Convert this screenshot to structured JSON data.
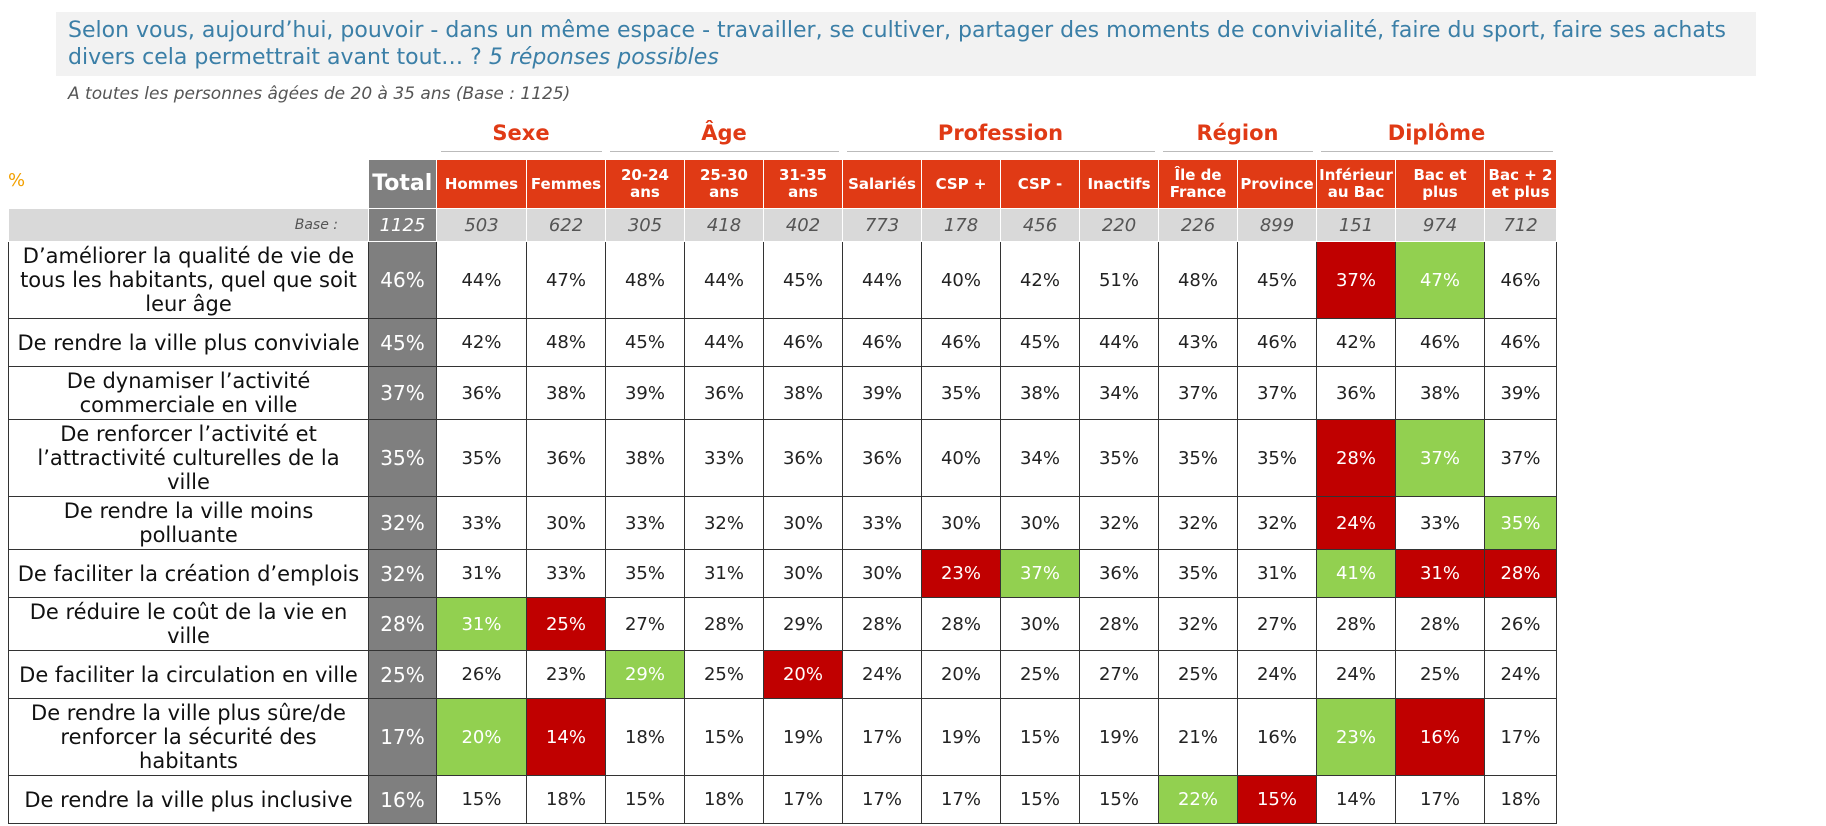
{
  "question": "Selon vous, aujourd’hui, pouvoir - dans un même espace - travailler, se cultiver, partager des moments de convivialité, faire du sport, faire ses achats divers cela permettrait avant tout… ?",
  "question_note": "5 réponses possibles",
  "base_description": "A toutes les personnes âgées de 20 à 35 ans (Base : 1125)",
  "percent_sign": "%",
  "colors": {
    "header": "#e03a15",
    "total": "#7f7f7f",
    "high": "#92d050",
    "low": "#c00000",
    "question_text": "#3b7fa7"
  },
  "chart_data": {
    "type": "table",
    "groups": [
      {
        "name": "Sexe",
        "span": 2
      },
      {
        "name": "Âge",
        "span": 3
      },
      {
        "name": "Profession",
        "span": 4
      },
      {
        "name": "Région",
        "span": 2
      },
      {
        "name": "Diplôme",
        "span": 3
      }
    ],
    "total_label": "Total",
    "columns": [
      "Hommes",
      "Femmes",
      "20-24 ans",
      "25-30 ans",
      "31-35 ans",
      "Salariés",
      "CSP +",
      "CSP -",
      "Inactifs",
      "Île de France",
      "Province",
      "Inférieur au Bac",
      "Bac et plus",
      "Bac + 2 et plus"
    ],
    "base_label": "Base :",
    "base": {
      "total": "1125",
      "values": [
        "503",
        "622",
        "305",
        "418",
        "402",
        "773",
        "178",
        "456",
        "220",
        "226",
        "899",
        "151",
        "974",
        "712"
      ]
    },
    "rows": [
      {
        "label": "D’améliorer la qualité de vie de tous les habitants, quel que soit leur âge",
        "total": "46%",
        "values": [
          "44%",
          "47%",
          "48%",
          "44%",
          "45%",
          "44%",
          "40%",
          "42%",
          "51%",
          "48%",
          "45%",
          "37%",
          "47%",
          "46%"
        ],
        "flags": [
          "",
          "",
          "",
          "",
          "",
          "",
          "",
          "",
          "",
          "",
          "",
          "low",
          "high",
          ""
        ]
      },
      {
        "label": "De rendre la ville plus conviviale",
        "total": "45%",
        "values": [
          "42%",
          "48%",
          "45%",
          "44%",
          "46%",
          "46%",
          "46%",
          "45%",
          "44%",
          "43%",
          "46%",
          "42%",
          "46%",
          "46%"
        ],
        "flags": [
          "",
          "",
          "",
          "",
          "",
          "",
          "",
          "",
          "",
          "",
          "",
          "",
          "",
          ""
        ]
      },
      {
        "label": "De dynamiser l’activité commerciale en ville",
        "total": "37%",
        "values": [
          "36%",
          "38%",
          "39%",
          "36%",
          "38%",
          "39%",
          "35%",
          "38%",
          "34%",
          "37%",
          "37%",
          "36%",
          "38%",
          "39%"
        ],
        "flags": [
          "",
          "",
          "",
          "",
          "",
          "",
          "",
          "",
          "",
          "",
          "",
          "",
          "",
          ""
        ]
      },
      {
        "label": "De renforcer l’activité et l’attractivité culturelles de la ville",
        "total": "35%",
        "values": [
          "35%",
          "36%",
          "38%",
          "33%",
          "36%",
          "36%",
          "40%",
          "34%",
          "35%",
          "35%",
          "35%",
          "28%",
          "37%",
          "37%"
        ],
        "flags": [
          "",
          "",
          "",
          "",
          "",
          "",
          "",
          "",
          "",
          "",
          "",
          "low",
          "high",
          ""
        ]
      },
      {
        "label": "De rendre la ville moins polluante",
        "total": "32%",
        "values": [
          "33%",
          "30%",
          "33%",
          "32%",
          "30%",
          "33%",
          "30%",
          "30%",
          "32%",
          "32%",
          "32%",
          "24%",
          "33%",
          "35%"
        ],
        "flags": [
          "",
          "",
          "",
          "",
          "",
          "",
          "",
          "",
          "",
          "",
          "",
          "low",
          "",
          "high"
        ]
      },
      {
        "label": "De faciliter la création d’emplois",
        "total": "32%",
        "values": [
          "31%",
          "33%",
          "35%",
          "31%",
          "30%",
          "30%",
          "23%",
          "37%",
          "36%",
          "35%",
          "31%",
          "41%",
          "31%",
          "28%"
        ],
        "flags": [
          "",
          "",
          "",
          "",
          "",
          "",
          "low",
          "high",
          "",
          "",
          "",
          "high",
          "low",
          "low"
        ]
      },
      {
        "label": "De réduire le coût de la vie en ville",
        "total": "28%",
        "values": [
          "31%",
          "25%",
          "27%",
          "28%",
          "29%",
          "28%",
          "28%",
          "30%",
          "28%",
          "32%",
          "27%",
          "28%",
          "28%",
          "26%"
        ],
        "flags": [
          "high",
          "low",
          "",
          "",
          "",
          "",
          "",
          "",
          "",
          "",
          "",
          "",
          "",
          ""
        ]
      },
      {
        "label": "De faciliter la circulation en ville",
        "total": "25%",
        "values": [
          "26%",
          "23%",
          "29%",
          "25%",
          "20%",
          "24%",
          "20%",
          "25%",
          "27%",
          "25%",
          "24%",
          "24%",
          "25%",
          "24%"
        ],
        "flags": [
          "",
          "",
          "high",
          "",
          "low",
          "",
          "",
          "",
          "",
          "",
          "",
          "",
          "",
          ""
        ]
      },
      {
        "label": "De rendre la ville plus sûre/de renforcer la sécurité des habitants",
        "total": "17%",
        "values": [
          "20%",
          "14%",
          "18%",
          "15%",
          "19%",
          "17%",
          "19%",
          "15%",
          "19%",
          "21%",
          "16%",
          "23%",
          "16%",
          "17%"
        ],
        "flags": [
          "high",
          "low",
          "",
          "",
          "",
          "",
          "",
          "",
          "",
          "",
          "",
          "high",
          "low",
          ""
        ]
      },
      {
        "label": "De rendre la ville plus inclusive",
        "total": "16%",
        "values": [
          "15%",
          "18%",
          "15%",
          "18%",
          "17%",
          "17%",
          "17%",
          "15%",
          "15%",
          "22%",
          "15%",
          "14%",
          "17%",
          "18%"
        ],
        "flags": [
          "",
          "",
          "",
          "",
          "",
          "",
          "",
          "",
          "",
          "high",
          "low",
          "",
          "",
          ""
        ]
      }
    ]
  }
}
